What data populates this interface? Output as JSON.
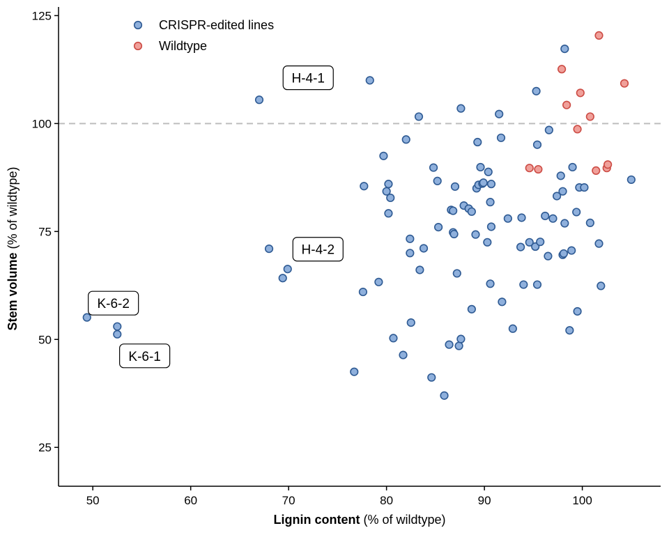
{
  "chart_data": {
    "type": "scatter",
    "xlabel_bold": "Lignin content",
    "xlabel_rest": " (% of wildtype)",
    "ylabel_bold": "Stem volume",
    "ylabel_rest": " (% of wildtype)",
    "xlim": [
      46.5,
      108
    ],
    "ylim": [
      16,
      127
    ],
    "x_ticks": [
      50,
      60,
      70,
      80,
      90,
      100
    ],
    "y_ticks": [
      25,
      50,
      75,
      100,
      125
    ],
    "reference_line": {
      "y": 100,
      "style": "dashed",
      "color": "#bdbdbd"
    },
    "grid": false,
    "legend": {
      "position": "top-left",
      "entries": [
        {
          "label": "CRISPR-edited lines",
          "fill": "#8fb0dc",
          "stroke": "#2e5a93"
        },
        {
          "label": "Wildtype",
          "fill": "#f0a09a",
          "stroke": "#cc4b44"
        }
      ]
    },
    "series": [
      {
        "name": "CRISPR-edited lines",
        "fill": "#8fb0dc",
        "stroke": "#2e5a93",
        "points": [
          [
            49.4,
            55.1
          ],
          [
            52.5,
            53.0
          ],
          [
            52.5,
            51.2
          ],
          [
            67.0,
            105.5
          ],
          [
            68.0,
            71.0
          ],
          [
            69.9,
            66.3
          ],
          [
            69.4,
            64.2
          ],
          [
            76.7,
            42.5
          ],
          [
            77.6,
            61.0
          ],
          [
            77.7,
            85.5
          ],
          [
            78.3,
            110.0
          ],
          [
            79.2,
            63.3
          ],
          [
            79.7,
            92.5
          ],
          [
            80.0,
            84.3
          ],
          [
            80.2,
            86.0
          ],
          [
            80.2,
            79.2
          ],
          [
            80.4,
            82.8
          ],
          [
            80.7,
            50.3
          ],
          [
            81.7,
            46.4
          ],
          [
            82.0,
            96.3
          ],
          [
            82.4,
            73.3
          ],
          [
            82.4,
            70.0
          ],
          [
            82.5,
            53.9
          ],
          [
            83.3,
            101.6
          ],
          [
            83.4,
            66.1
          ],
          [
            83.8,
            71.1
          ],
          [
            84.6,
            41.2
          ],
          [
            84.8,
            89.8
          ],
          [
            85.2,
            86.7
          ],
          [
            85.3,
            76.0
          ],
          [
            85.9,
            37.0
          ],
          [
            86.4,
            48.8
          ],
          [
            86.6,
            80.0
          ],
          [
            86.8,
            79.8
          ],
          [
            86.8,
            74.8
          ],
          [
            86.9,
            74.4
          ],
          [
            87.0,
            85.4
          ],
          [
            87.2,
            65.3
          ],
          [
            87.4,
            48.5
          ],
          [
            87.6,
            50.1
          ],
          [
            87.6,
            103.5
          ],
          [
            87.9,
            81.0
          ],
          [
            88.4,
            80.3
          ],
          [
            88.7,
            79.6
          ],
          [
            88.7,
            57.0
          ],
          [
            89.1,
            74.3
          ],
          [
            89.2,
            85.0
          ],
          [
            89.3,
            95.7
          ],
          [
            89.4,
            85.8
          ],
          [
            89.6,
            89.9
          ],
          [
            89.8,
            86.1
          ],
          [
            89.9,
            86.3
          ],
          [
            90.3,
            72.5
          ],
          [
            90.4,
            88.8
          ],
          [
            90.6,
            62.9
          ],
          [
            90.6,
            81.8
          ],
          [
            90.7,
            86.0
          ],
          [
            90.7,
            76.1
          ],
          [
            91.5,
            102.2
          ],
          [
            91.7,
            96.7
          ],
          [
            91.8,
            58.7
          ],
          [
            92.4,
            78.0
          ],
          [
            92.9,
            52.5
          ],
          [
            93.7,
            71.4
          ],
          [
            93.8,
            78.2
          ],
          [
            94.0,
            62.7
          ],
          [
            94.6,
            72.5
          ],
          [
            95.2,
            71.5
          ],
          [
            95.3,
            107.5
          ],
          [
            95.4,
            62.7
          ],
          [
            95.4,
            95.1
          ],
          [
            95.7,
            72.6
          ],
          [
            96.2,
            78.6
          ],
          [
            96.5,
            69.3
          ],
          [
            96.6,
            98.5
          ],
          [
            97.0,
            78.0
          ],
          [
            97.4,
            83.2
          ],
          [
            97.8,
            87.9
          ],
          [
            98.0,
            84.3
          ],
          [
            98.0,
            69.6
          ],
          [
            98.1,
            69.9
          ],
          [
            98.2,
            76.9
          ],
          [
            98.2,
            117.3
          ],
          [
            98.7,
            52.1
          ],
          [
            98.9,
            70.6
          ],
          [
            99.0,
            89.9
          ],
          [
            99.4,
            79.5
          ],
          [
            99.5,
            56.5
          ],
          [
            99.7,
            85.2
          ],
          [
            100.2,
            85.2
          ],
          [
            100.8,
            77.0
          ],
          [
            101.7,
            72.2
          ],
          [
            101.9,
            62.4
          ],
          [
            105.0,
            87.0
          ]
        ]
      },
      {
        "name": "Wildtype",
        "fill": "#f0a09a",
        "stroke": "#cc4b44",
        "points": [
          [
            97.9,
            112.6
          ],
          [
            98.4,
            104.3
          ],
          [
            99.5,
            98.7
          ],
          [
            99.8,
            107.1
          ],
          [
            100.8,
            101.6
          ],
          [
            101.4,
            89.1
          ],
          [
            101.7,
            120.4
          ],
          [
            102.5,
            89.7
          ],
          [
            102.6,
            90.5
          ],
          [
            104.3,
            109.3
          ],
          [
            94.6,
            89.7
          ],
          [
            95.5,
            89.4
          ]
        ]
      }
    ],
    "annotations": [
      {
        "text": "H-4-1",
        "x": 72.0,
        "y": 110.6
      },
      {
        "text": "H-4-2",
        "x": 73.0,
        "y": 70.9
      },
      {
        "text": "K-6-2",
        "x": 52.1,
        "y": 58.4
      },
      {
        "text": "K-6-1",
        "x": 55.3,
        "y": 46.2
      }
    ]
  }
}
